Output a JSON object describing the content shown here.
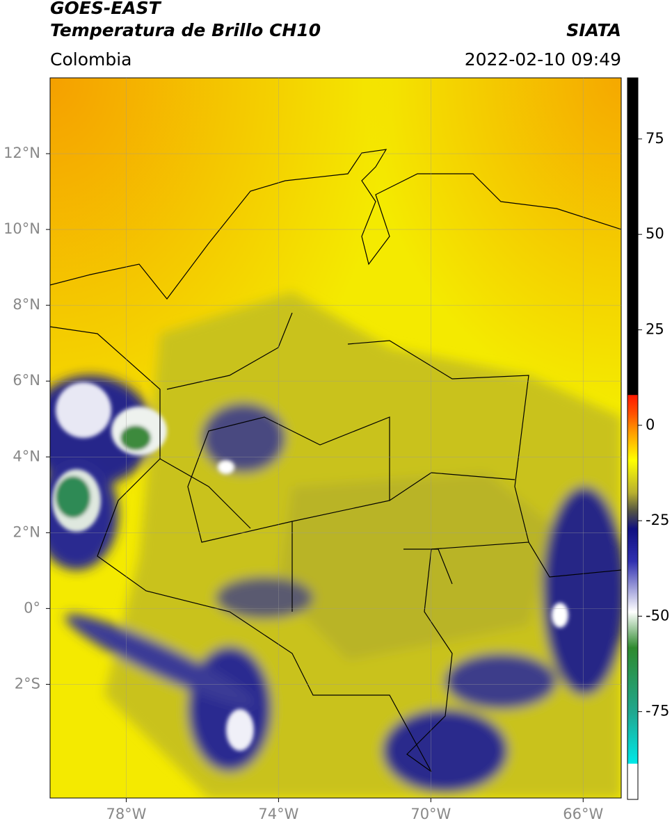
{
  "header": {
    "satellite": "GOES-EAST",
    "product": "Temperatura de Brillo CH10",
    "source": "SIATA",
    "region": "Colombia",
    "datetime": "2022-02-10 09:49"
  },
  "map": {
    "xlim": [
      -80,
      -65
    ],
    "ylim": [
      -5,
      14
    ],
    "xticks": [
      {
        "value": -78,
        "label": "78°W"
      },
      {
        "value": -74,
        "label": "74°W"
      },
      {
        "value": -70,
        "label": "70°W"
      },
      {
        "value": -66,
        "label": "66°W"
      }
    ],
    "yticks": [
      {
        "value": 12,
        "label": "12°N"
      },
      {
        "value": 10,
        "label": "10°N"
      },
      {
        "value": 8,
        "label": "8°N"
      },
      {
        "value": 6,
        "label": "6°N"
      },
      {
        "value": 4,
        "label": "4°N"
      },
      {
        "value": 2,
        "label": "2°N"
      },
      {
        "value": 0,
        "label": "0°"
      },
      {
        "value": -2,
        "label": "2°S"
      }
    ],
    "grid": true
  },
  "colorbar": {
    "lim": [
      -98,
      91
    ],
    "ticks": [
      75,
      50,
      25,
      0,
      -25,
      -50,
      -75
    ]
  }
}
